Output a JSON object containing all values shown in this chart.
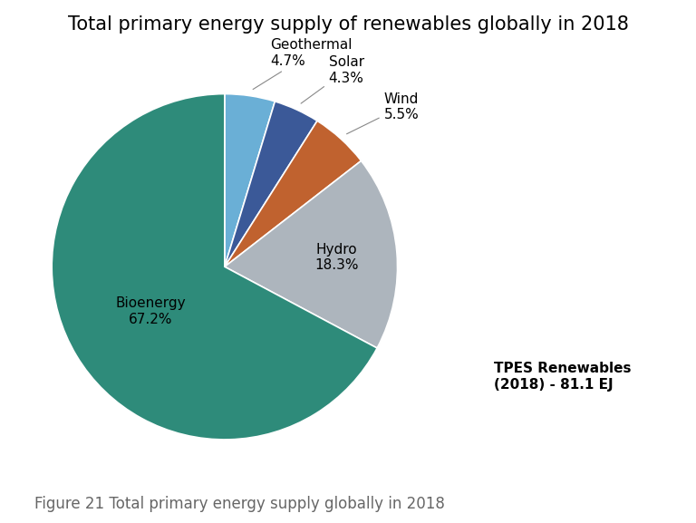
{
  "title": "Total primary energy supply of renewables globally in 2018",
  "caption": "Figure 21 Total primary energy supply globally in 2018",
  "annotation": "TPES Renewables\n(2018) - 81.1 EJ",
  "slices": [
    {
      "label": "Bioenergy",
      "value": 67.2,
      "color": "#2e8b7a"
    },
    {
      "label": "Hydro",
      "value": 18.3,
      "color": "#adb5bd"
    },
    {
      "label": "Wind",
      "value": 5.5,
      "color": "#c0622f"
    },
    {
      "label": "Solar",
      "value": 4.3,
      "color": "#3b5998"
    },
    {
      "label": "Geothermal",
      "value": 4.7,
      "color": "#6aafd6"
    }
  ],
  "background_color": "#ffffff",
  "title_fontsize": 15,
  "label_fontsize": 11,
  "caption_fontsize": 12,
  "annotation_fontsize": 11
}
